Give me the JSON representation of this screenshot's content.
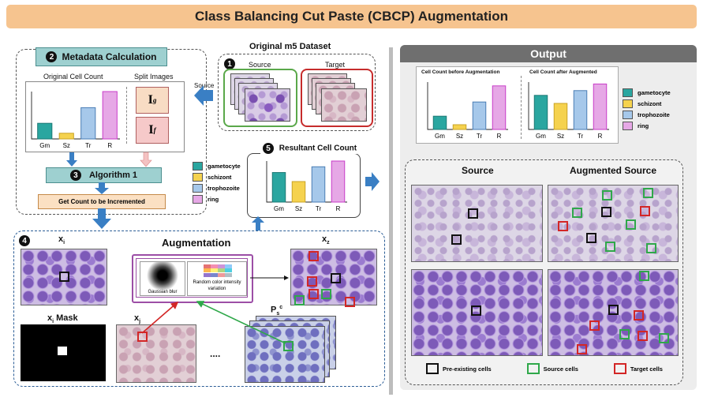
{
  "title": "Class Balancing Cut Paste (CBCP) Augmentation",
  "metadata": {
    "step_number": "2",
    "heading": "Metadata Calculation",
    "original_cell_count_label": "Original Cell Count",
    "split_images_label": "Split Images",
    "ig_label": "I",
    "ig_sub": "g",
    "if_label": "I",
    "if_sub": "f",
    "algorithm_step": "3",
    "algorithm_label": "Algorithm 1",
    "get_count_label": "Get Count to be Incremented"
  },
  "dataset": {
    "step_number": "1",
    "heading": "Original m5 Dataset",
    "source_label": "Source",
    "target_label": "Target",
    "arrow_label": "Source"
  },
  "resultant": {
    "step_number": "5",
    "heading": "Resultant Cell Count"
  },
  "classes": {
    "categories": [
      "Gm",
      "Sz",
      "Tr",
      "R"
    ],
    "legend": [
      {
        "name": "gametocyte",
        "color": "#2aa6a0"
      },
      {
        "name": "schizont",
        "color": "#f5d24e"
      },
      {
        "name": "trophozoite",
        "color": "#a6c8ea"
      },
      {
        "name": "ring",
        "color": "#e6a8e6"
      }
    ],
    "bar_colors": [
      "#2aa6a0",
      "#f5d24e",
      "#a6c8ea",
      "#e6a8e6"
    ],
    "bar_borders": [
      "#1c7874",
      "#c9a326",
      "#4a7db4",
      "#c83cc8"
    ]
  },
  "chart_data": [
    {
      "type": "bar",
      "categories": [
        "Gm",
        "Sz",
        "Tr",
        "R"
      ],
      "values": [
        0.33,
        0.12,
        0.66,
        1.0
      ],
      "title": "Original Cell Count"
    },
    {
      "type": "bar",
      "categories": [
        "Gm",
        "Sz",
        "Tr",
        "R"
      ],
      "values": [
        0.72,
        0.5,
        0.86,
        1.0
      ],
      "title": "Resultant Cell Count"
    },
    {
      "type": "bar",
      "categories": [
        "Gm",
        "Sz",
        "Tr",
        "R"
      ],
      "values": [
        0.28,
        0.1,
        0.58,
        0.92
      ],
      "title": "Cell Count before Augmentation"
    },
    {
      "type": "bar",
      "categories": [
        "Gm",
        "Sz",
        "Tr",
        "R"
      ],
      "values": [
        0.72,
        0.55,
        0.82,
        0.96
      ],
      "title": "Cell Count after Augmented"
    }
  ],
  "augmentation": {
    "step_number": "4",
    "heading": "Augmentation",
    "xi_label": "x",
    "xi_sub": "i",
    "xz_label": "x",
    "xz_sub": "z",
    "mask_label": "x",
    "mask_sub": "i",
    "mask_suffix": " Mask",
    "xj_label": "x",
    "xj_sub": "j",
    "ps_label": "P",
    "ps_sub": "s",
    "ps_sup": "c",
    "dots": "....",
    "gaussian_label": "Gaussian blur",
    "color_label": "Random color intensity variation"
  },
  "output": {
    "heading": "Output",
    "before_label": "Cell Count before Augmentation",
    "after_label": "Cell Count after Augmented",
    "source_heading": "Source",
    "augmented_heading": "Augmented Source",
    "marker_legend": [
      {
        "name": "Pre-existing cells",
        "color": "#111111"
      },
      {
        "name": "Source cells",
        "color": "#2fa84a"
      },
      {
        "name": "Target cells",
        "color": "#d32626"
      }
    ]
  }
}
